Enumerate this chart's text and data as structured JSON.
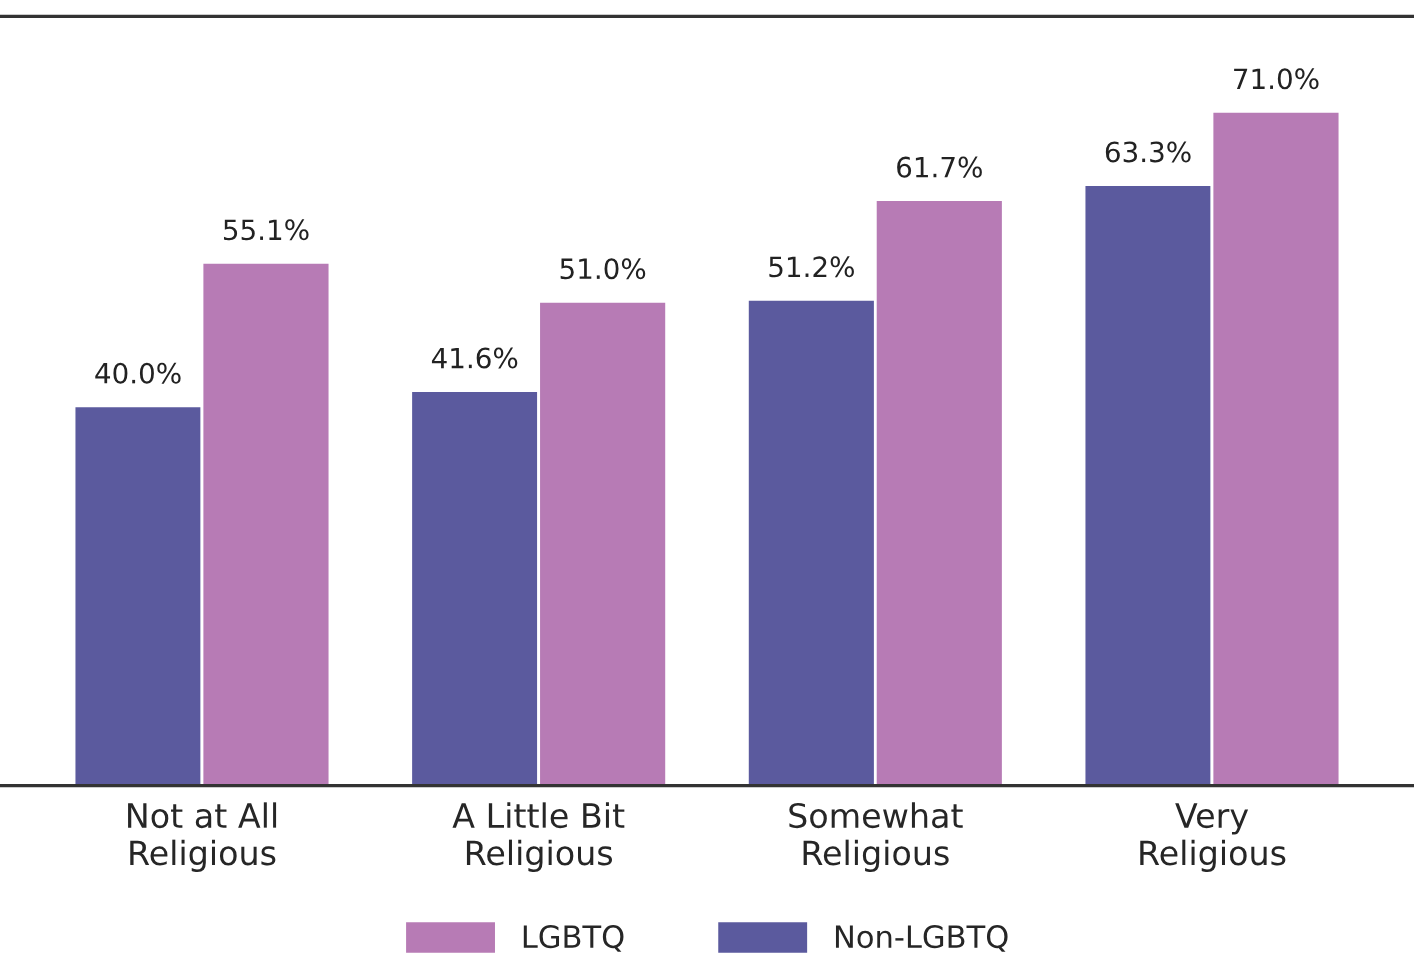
{
  "chart_data": {
    "type": "bar",
    "categories": [
      "Not at All\nReligious",
      "A Little Bit\nReligious",
      "Somewhat\nReligious",
      "Very\nReligious"
    ],
    "series": [
      {
        "name": "Non-LGBTQ",
        "color": "#5b5a9e",
        "values": [
          40.0,
          41.6,
          51.2,
          63.3
        ],
        "value_labels": [
          "40.0%",
          "41.6%",
          "51.2%",
          "63.3%"
        ]
      },
      {
        "name": "LGBTQ",
        "color": "#b77bb5",
        "values": [
          55.1,
          51.0,
          61.7,
          71.0
        ],
        "value_labels": [
          "55.1%",
          "51.0%",
          "61.7%",
          "71.0%"
        ]
      }
    ],
    "ylim": [
      0,
      81
    ],
    "tick_labels": "x",
    "grid": false,
    "legend": "bottom"
  }
}
